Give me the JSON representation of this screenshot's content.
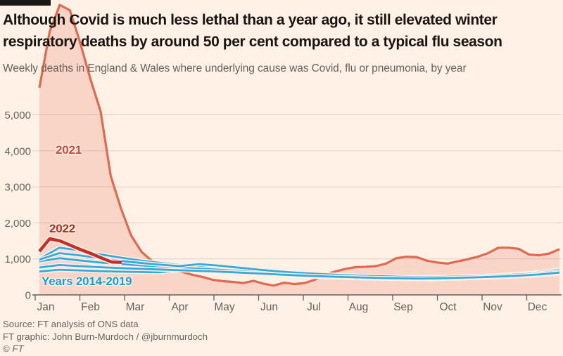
{
  "header": {
    "title": "Although Covid is much less lethal than a year ago, it still elevated winter respiratory deaths by around 50 per cent compared to a typical flu season",
    "subtitle": "Weekly deaths in England & Wales where underlying cause was Covid, flu or pneumonia, by year"
  },
  "labels": {
    "s2021": "2021",
    "s2022": "2022",
    "baseline": "Years 2014-2019"
  },
  "footer": {
    "source": "Source: FT analysis of ONS data",
    "credit": "FT graphic: John Burn-Murdoch / @jburnmurdoch",
    "copyright_symbol": "©",
    "copyright_ft": "FT"
  },
  "colors": {
    "background": "#fff1e5",
    "title_text": "#181512",
    "muted_text": "#66605c",
    "grid": "rgba(102,96,92,0.22)",
    "axis": "#66605c",
    "salmon_2021": "#e0694f",
    "red_2022": "#c32e28",
    "blue_baseline": "#35a9dc",
    "label_2021": "#c24f40",
    "label_2022": "#b32b24",
    "label_blue": "#1d9bd2"
  },
  "chart_data": {
    "type": "line",
    "title": "Although Covid is much less lethal than a year ago, it still elevated winter respiratory deaths by around 50 per cent compared to a typical flu season",
    "subtitle": "Weekly deaths in England & Wales where underlying cause was Covid, flu or pneumonia, by year",
    "xlabel": "",
    "ylabel": "Weekly deaths",
    "ylim_visible": [
      0,
      5000
    ],
    "note": "2021 January peak (~8,000) extends above the visible axis behind the headline",
    "yticks": [
      0,
      1000,
      2000,
      3000,
      4000,
      5000
    ],
    "ytick_labels": [
      "0",
      "1,000",
      "2,000",
      "3,000",
      "4,000",
      "5,000"
    ],
    "months": [
      "Jan",
      "Feb",
      "Mar",
      "Apr",
      "May",
      "Jun",
      "Jul",
      "Aug",
      "Sep",
      "Oct",
      "Nov",
      "Dec"
    ],
    "grid": true,
    "legend_position": "inline-labels",
    "series": [
      {
        "name": "2021",
        "role": "area",
        "color": "#e0694f",
        "fill_opacity": 0.2,
        "width": 3.2,
        "x0": 0.008,
        "x1": 1,
        "values": [
          5750,
          7300,
          8050,
          7900,
          7000,
          6000,
          5100,
          3300,
          2400,
          1650,
          1200,
          950,
          800,
          720,
          640,
          560,
          500,
          420,
          380,
          360,
          330,
          390,
          310,
          260,
          340,
          300,
          330,
          420,
          560,
          650,
          720,
          770,
          780,
          800,
          870,
          1020,
          1060,
          1050,
          950,
          900,
          870,
          930,
          990,
          1060,
          1160,
          1310,
          1310,
          1280,
          1120,
          1100,
          1150,
          1270
        ]
      },
      {
        "name": "2014",
        "role": "baseline",
        "color": "#35a9dc",
        "width": 2.8,
        "x0": 0.008,
        "x1": 1,
        "values": [
          920,
          1060,
          950,
          870,
          820,
          780,
          750,
          720,
          700,
          660,
          620,
          580,
          550,
          530,
          510,
          500,
          490,
          480,
          470,
          475,
          480,
          490,
          500,
          515,
          535,
          560,
          610
        ]
      },
      {
        "name": "2015",
        "role": "baseline",
        "color": "#35a9dc",
        "width": 2.8,
        "x0": 0.008,
        "x1": 1,
        "values": [
          1000,
          1310,
          1240,
          1130,
          1040,
          960,
          890,
          830,
          780,
          730,
          690,
          650,
          610,
          580,
          555,
          535,
          520,
          505,
          495,
          490,
          495,
          505,
          520,
          540,
          565,
          600,
          650
        ]
      },
      {
        "name": "2016",
        "role": "baseline",
        "color": "#35a9dc",
        "width": 2.8,
        "x0": 0.008,
        "x1": 1,
        "values": [
          650,
          700,
          680,
          660,
          645,
          635,
          625,
          690,
          730,
          680,
          630,
          590,
          550,
          520,
          495,
          475,
          460,
          450,
          440,
          435,
          440,
          455,
          470,
          490,
          515,
          545,
          590
        ]
      },
      {
        "name": "2017",
        "role": "baseline",
        "color": "#35a9dc",
        "width": 2.8,
        "x0": 0.008,
        "x1": 1,
        "values": [
          930,
          1020,
          960,
          900,
          860,
          820,
          790,
          760,
          730,
          700,
          665,
          630,
          600,
          575,
          550,
          530,
          515,
          500,
          490,
          485,
          490,
          505,
          525,
          550,
          585,
          635,
          700
        ]
      },
      {
        "name": "2018",
        "role": "baseline",
        "color": "#35a9dc",
        "width": 2.8,
        "x0": 0.008,
        "x1": 1,
        "values": [
          980,
          1160,
          1100,
          1020,
          950,
          890,
          840,
          800,
          855,
          810,
          755,
          700,
          650,
          610,
          580,
          555,
          535,
          520,
          505,
          495,
          500,
          510,
          525,
          545,
          570,
          605,
          655
        ]
      },
      {
        "name": "2019",
        "role": "baseline",
        "color": "#35a9dc",
        "width": 2.8,
        "x0": 0.008,
        "x1": 1,
        "values": [
          760,
          830,
          800,
          770,
          745,
          725,
          705,
          685,
          665,
          645,
          620,
          595,
          565,
          540,
          520,
          500,
          485,
          470,
          460,
          455,
          460,
          475,
          490,
          510,
          535,
          570,
          620
        ]
      },
      {
        "name": "2022",
        "role": "current",
        "color": "#c32e28",
        "width": 4.5,
        "x0": 0.008,
        "x1": 0.165,
        "values": [
          1210,
          1560,
          1500,
          1380,
          1260,
          1150,
          1030,
          915,
          905
        ]
      }
    ]
  }
}
